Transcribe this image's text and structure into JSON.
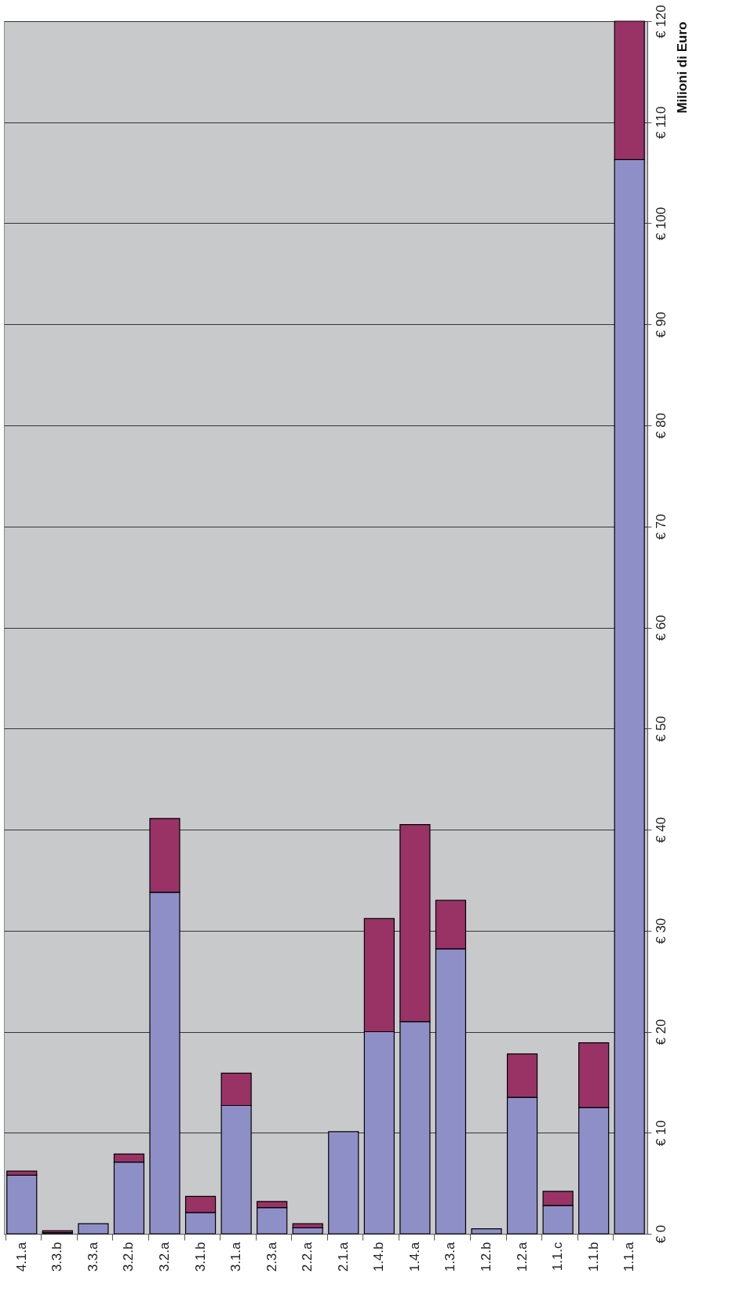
{
  "chart_data": {
    "type": "bar",
    "stacked": true,
    "ylabel": "Milioni di Euro",
    "categories": [
      "4.1.a",
      "3.3.b",
      "3.3.a",
      "3.2.b",
      "3.2.a",
      "3.1.b",
      "3.1.a",
      "2.3.a",
      "2.2.a",
      "2.1.a",
      "1.4.b",
      "1.4.a",
      "1.3.a",
      "1.2.b",
      "1.2.a",
      "1.1.c",
      "1.1.b",
      "1.1.a"
    ],
    "series": [
      {
        "color": "#8f8fc8",
        "values": [
          5.8,
          0.1,
          1.0,
          7.1,
          33.8,
          2.1,
          12.7,
          2.6,
          0.6,
          10.1,
          20.0,
          21.0,
          28.2,
          0.5,
          13.5,
          2.8,
          12.5,
          106.3
        ]
      },
      {
        "color": "#993366",
        "values": [
          0.4,
          0.2,
          null,
          0.8,
          7.3,
          1.6,
          3.2,
          0.6,
          0.4,
          null,
          11.2,
          19.5,
          4.8,
          null,
          4.3,
          1.4,
          6.4,
          13.7
        ]
      }
    ],
    "ylim": [
      0,
      120
    ],
    "yticks": [
      {
        "value": 0,
        "label": "€ 0"
      },
      {
        "value": 10,
        "label": "€ 10"
      },
      {
        "value": 20,
        "label": "€ 20"
      },
      {
        "value": 30,
        "label": "€ 30"
      },
      {
        "value": 40,
        "label": "€ 40"
      },
      {
        "value": 50,
        "label": "€ 50"
      },
      {
        "value": 60,
        "label": "€ 60"
      },
      {
        "value": 70,
        "label": "€ 70"
      },
      {
        "value": 80,
        "label": "€ 80"
      },
      {
        "value": 90,
        "label": "€ 90"
      },
      {
        "value": 100,
        "label": "€ 100"
      },
      {
        "value": 110,
        "label": "€ 110"
      },
      {
        "value": 120,
        "label": "€ 120"
      }
    ],
    "grid": "y"
  }
}
